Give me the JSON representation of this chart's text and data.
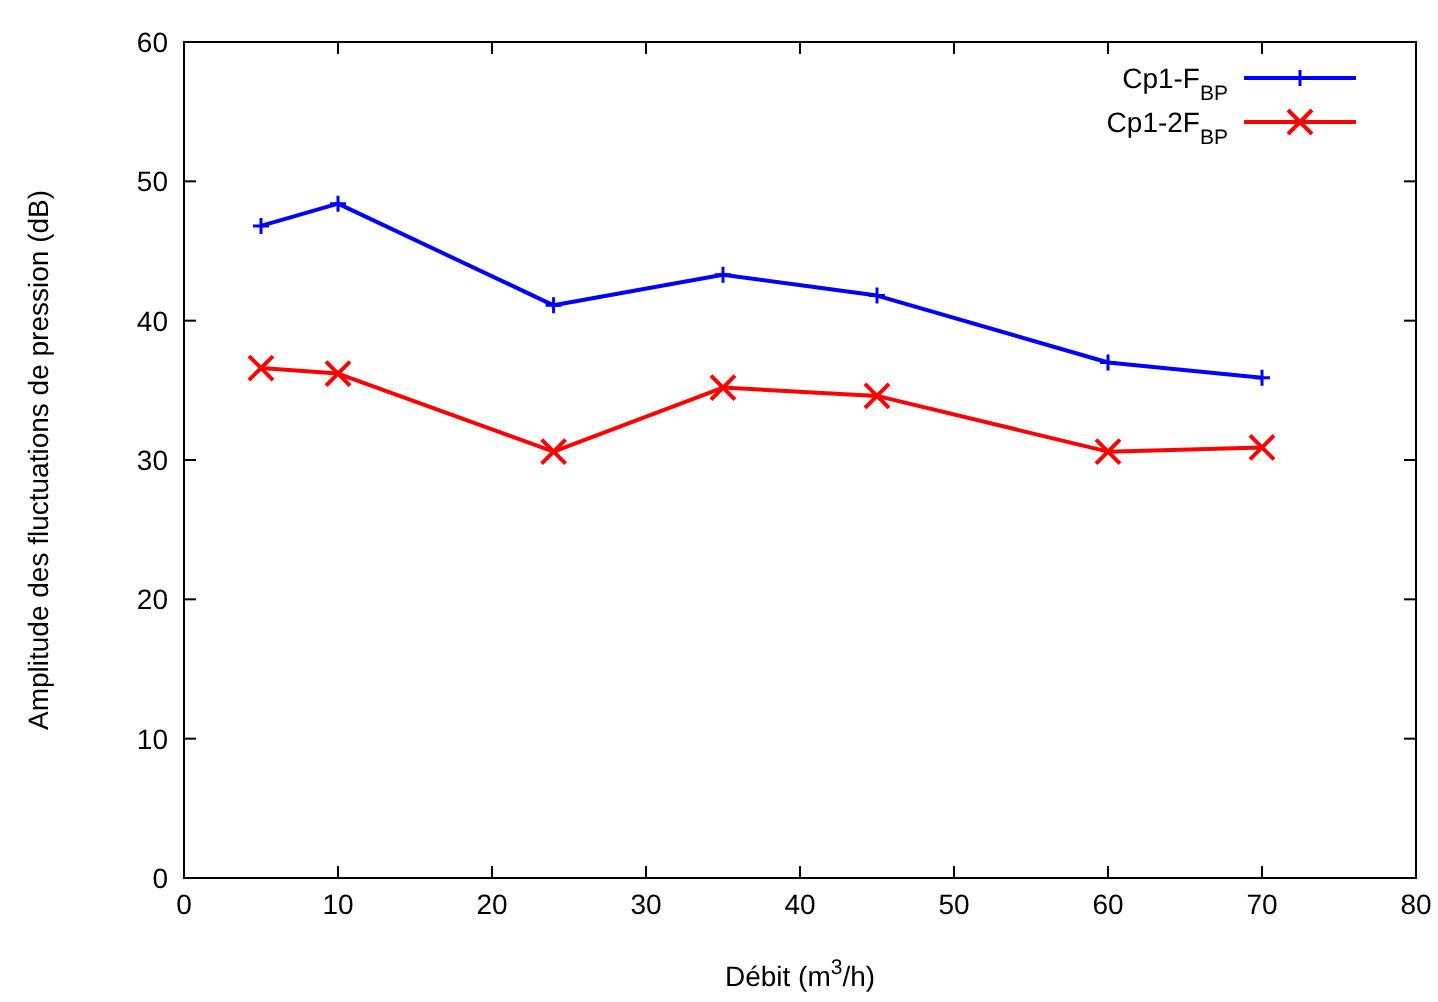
{
  "chart_data": {
    "type": "line",
    "xlabel": "Débit (m$^{3}$/h)",
    "ylabel": "Amplitude des fluctuations de pression (dB)",
    "xlim": [
      0,
      80
    ],
    "xticks": [
      0,
      10,
      20,
      30,
      40,
      50,
      60,
      70,
      80
    ],
    "ylim": [
      0,
      60
    ],
    "yticks": [
      0,
      10,
      20,
      30,
      40,
      50,
      60
    ],
    "grid": false,
    "legend": "top right",
    "line_style": "solid",
    "series": [
      {
        "name": "Cp1-F$_{BP}$",
        "color": "#0000ff",
        "marker": "plus",
        "x": [
          5,
          10,
          24,
          35,
          45,
          60,
          70
        ],
        "values": [
          46.8,
          48.4,
          41.1,
          43.3,
          41.8,
          37.0,
          35.9
        ]
      },
      {
        "name": "Cp1-2F$_{BP}$",
        "color": "#ff0000",
        "marker": "cross",
        "x": [
          5,
          10,
          24,
          35,
          45,
          60,
          70
        ],
        "values": [
          36.6,
          36.2,
          30.6,
          35.2,
          34.6,
          30.6,
          30.9
        ]
      }
    ]
  }
}
